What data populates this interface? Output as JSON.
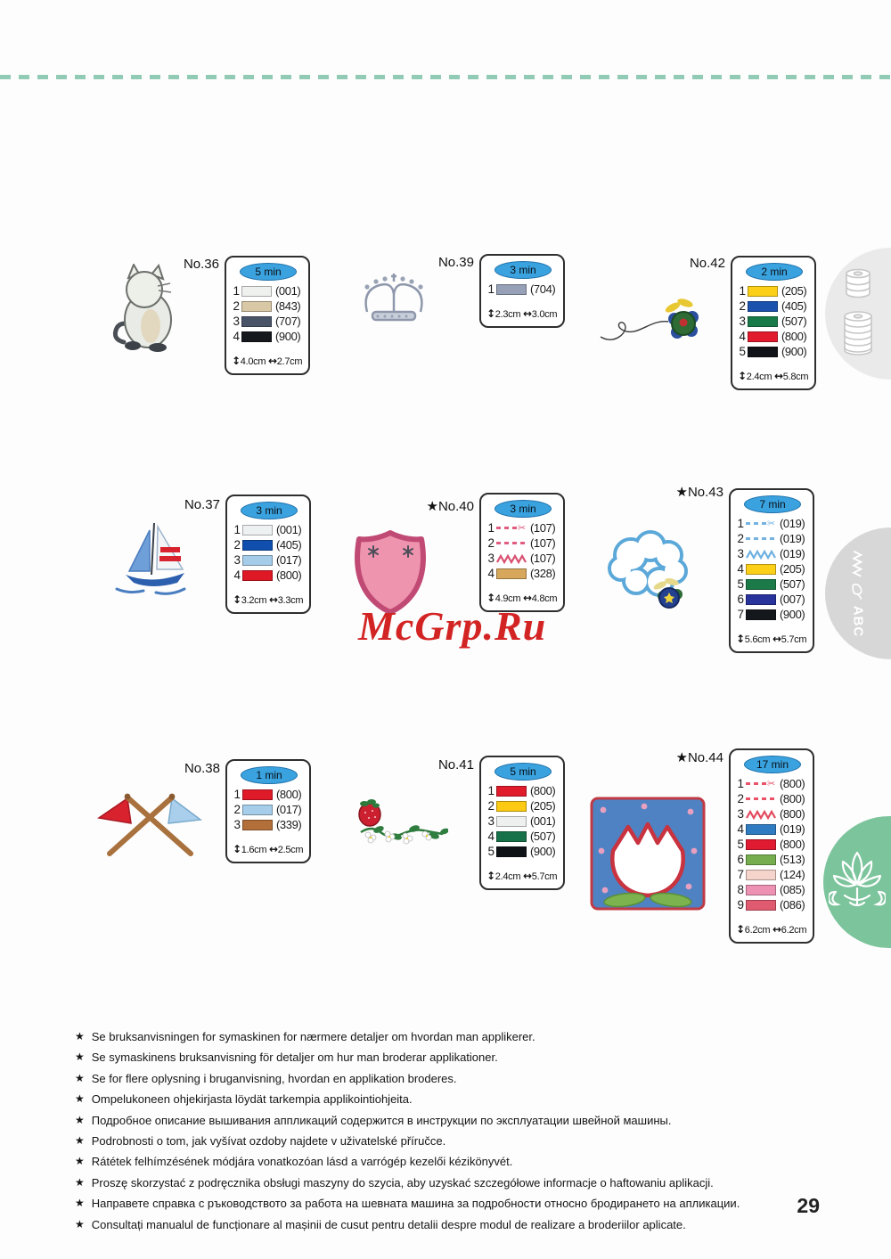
{
  "page": {
    "number": "29"
  },
  "watermark": {
    "text": "McGrp.Ru"
  },
  "ui": {
    "star_bullet": "★",
    "scissors_icon": "✂",
    "height_arrow": "↕",
    "width_arrow": "↔"
  },
  "tabs": {
    "spools_tab": "thread-spools",
    "abc_label": "ABC",
    "flower_tab": "ornament-flower"
  },
  "patterns": [
    {
      "label": "No.36",
      "time": "5 min",
      "height": "4.0cm",
      "width": "2.7cm",
      "rows": [
        {
          "n": "1",
          "type": "solid",
          "color": "#eef1ee",
          "code": "(001)"
        },
        {
          "n": "2",
          "type": "solid",
          "color": "#d9c8a5",
          "code": "(843)"
        },
        {
          "n": "3",
          "type": "solid",
          "color": "#4a5469",
          "code": "(707)"
        },
        {
          "n": "4",
          "type": "solid",
          "color": "#15181d",
          "code": "(900)"
        }
      ]
    },
    {
      "label": "No.39",
      "time": "3 min",
      "height": "2.3cm",
      "width": "3.0cm",
      "rows": [
        {
          "n": "1",
          "type": "solid",
          "color": "#96a0b6",
          "code": "(704)"
        }
      ]
    },
    {
      "label": "No.42",
      "time": "2 min",
      "height": "2.4cm",
      "width": "5.8cm",
      "rows": [
        {
          "n": "1",
          "type": "solid",
          "color": "#fcd016",
          "code": "(205)"
        },
        {
          "n": "2",
          "type": "solid",
          "color": "#1a52ae",
          "code": "(405)"
        },
        {
          "n": "3",
          "type": "solid",
          "color": "#187a49",
          "code": "(507)"
        },
        {
          "n": "4",
          "type": "solid",
          "color": "#e11b2d",
          "code": "(800)"
        },
        {
          "n": "5",
          "type": "solid",
          "color": "#101418",
          "code": "(900)"
        }
      ]
    },
    {
      "label": "No.37",
      "time": "3 min",
      "height": "3.2cm",
      "width": "3.3cm",
      "rows": [
        {
          "n": "1",
          "type": "solid",
          "color": "#eef1f2",
          "code": "(001)"
        },
        {
          "n": "2",
          "type": "solid",
          "color": "#104fae",
          "code": "(405)"
        },
        {
          "n": "3",
          "type": "solid",
          "color": "#a5cce9",
          "code": "(017)"
        },
        {
          "n": "4",
          "type": "solid",
          "color": "#df1826",
          "code": "(800)"
        }
      ]
    },
    {
      "label": "★No.40",
      "time": "3 min",
      "height": "4.9cm",
      "width": "4.8cm",
      "rows": [
        {
          "n": "1",
          "type": "dashcut",
          "color": "#e05c80",
          "code": "(107)"
        },
        {
          "n": "2",
          "type": "dash",
          "color": "#e05c80",
          "code": "(107)"
        },
        {
          "n": "3",
          "type": "zigzag",
          "color": "#d94f70",
          "code": "(107)"
        },
        {
          "n": "4",
          "type": "solid",
          "color": "#d7a75b",
          "code": "(328)"
        }
      ]
    },
    {
      "label": "★No.43",
      "time": "7 min",
      "height": "5.6cm",
      "width": "5.7cm",
      "rows": [
        {
          "n": "1",
          "type": "dashcut",
          "color": "#74b2e2",
          "code": "(019)"
        },
        {
          "n": "2",
          "type": "dash",
          "color": "#74b2e2",
          "code": "(019)"
        },
        {
          "n": "3",
          "type": "zigzag",
          "color": "#6fb0e0",
          "code": "(019)"
        },
        {
          "n": "4",
          "type": "solid",
          "color": "#fcd019",
          "code": "(205)"
        },
        {
          "n": "5",
          "type": "solid",
          "color": "#1c7a48",
          "code": "(507)"
        },
        {
          "n": "6",
          "type": "solid",
          "color": "#28339b",
          "code": "(007)"
        },
        {
          "n": "7",
          "type": "solid",
          "color": "#14171b",
          "code": "(900)"
        }
      ]
    },
    {
      "label": "No.38",
      "time": "1 min",
      "height": "1.6cm",
      "width": "2.5cm",
      "rows": [
        {
          "n": "1",
          "type": "solid",
          "color": "#df1b2a",
          "code": "(800)"
        },
        {
          "n": "2",
          "type": "solid",
          "color": "#a6cde9",
          "code": "(017)"
        },
        {
          "n": "3",
          "type": "solid",
          "color": "#b26f3a",
          "code": "(339)"
        }
      ]
    },
    {
      "label": "No.41",
      "time": "5 min",
      "height": "2.4cm",
      "width": "5.7cm",
      "rows": [
        {
          "n": "1",
          "type": "solid",
          "color": "#e01b2c",
          "code": "(800)"
        },
        {
          "n": "2",
          "type": "solid",
          "color": "#fcca12",
          "code": "(205)"
        },
        {
          "n": "3",
          "type": "solid",
          "color": "#eef0ef",
          "code": "(001)"
        },
        {
          "n": "4",
          "type": "solid",
          "color": "#17724a",
          "code": "(507)"
        },
        {
          "n": "5",
          "type": "solid",
          "color": "#0f1317",
          "code": "(900)"
        }
      ]
    },
    {
      "label": "★No.44",
      "time": "17 min",
      "height": "6.2cm",
      "width": "6.2cm",
      "rows": [
        {
          "n": "1",
          "type": "dashcut",
          "color": "#e8536a",
          "code": "(800)"
        },
        {
          "n": "2",
          "type": "dash",
          "color": "#e8536a",
          "code": "(800)"
        },
        {
          "n": "3",
          "type": "zigzag",
          "color": "#e34a5e",
          "code": "(800)"
        },
        {
          "n": "4",
          "type": "solid",
          "color": "#2f7bc2",
          "code": "(019)"
        },
        {
          "n": "5",
          "type": "solid",
          "color": "#e01a31",
          "code": "(800)"
        },
        {
          "n": "6",
          "type": "solid",
          "color": "#76ad4f",
          "code": "(513)"
        },
        {
          "n": "7",
          "type": "solid",
          "color": "#f4d4cb",
          "code": "(124)"
        },
        {
          "n": "8",
          "type": "solid",
          "color": "#ee92b3",
          "code": "(085)"
        },
        {
          "n": "9",
          "type": "solid",
          "color": "#e15b70",
          "code": "(086)"
        }
      ]
    }
  ],
  "footer": {
    "items": [
      "Se bruksanvisningen for symaskinen for nærmere detaljer om hvordan man applikerer.",
      "Se symaskinens bruksanvisning för detaljer om hur man broderar applikationer.",
      "Se for flere oplysning i bruganvisning, hvordan en applikation broderes.",
      "Ompelukoneen ohjekirjasta löydät tarkempia applikointiohjeita.",
      "Подробное описание вышивания аппликаций содержится в инструкции по эксплуатации швейной машины.",
      "Podrobnosti o tom, jak vyšívat ozdoby najdete v uživatelské příručce.",
      "Rátétek felhímzésének módjára vonatkozóan lásd a varrógép kezelői kézikönyvét.",
      "Proszę skorzystać z podręcznika obsługi maszyny do szycia, aby uzyskać szczegółowe informacje o haftowaniu aplikacji.",
      "Направете справка с ръководството за работа на шевната машина за подробности относно бродирането на апликации.",
      "Consultați manualul de funcționare al mașinii de cusut pentru detalii despre modul de realizare a broderiilor aplicate."
    ]
  }
}
